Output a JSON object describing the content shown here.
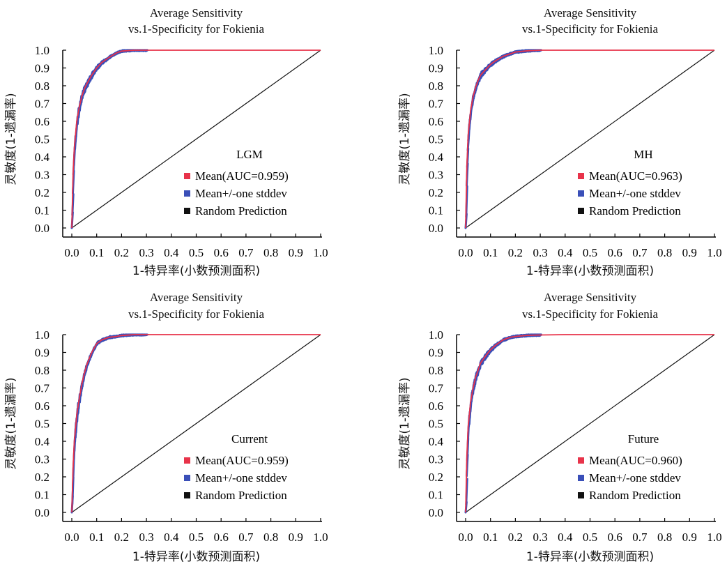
{
  "colors": {
    "mean": "#e8334a",
    "stddev": "#3a4fb8",
    "random": "#111111",
    "axis": "#000000"
  },
  "chart_data": [
    {
      "type": "line",
      "panel_label": "LGM",
      "title_line1": "Average Sensitivity",
      "title_line2": "vs.1-Specificity for Fokienia",
      "xlabel": "1-特异率(小数预测面积)",
      "ylabel": "灵敏度(1-遗漏率)",
      "xlim": [
        0,
        1
      ],
      "ylim": [
        0,
        1
      ],
      "x_ticks": [
        "0.0",
        "0.1",
        "0.2",
        "0.3",
        "0.4",
        "0.5",
        "0.6",
        "0.7",
        "0.8",
        "0.9",
        "1.0"
      ],
      "y_ticks": [
        "0.0",
        "0.1",
        "0.2",
        "0.3",
        "0.4",
        "0.5",
        "0.6",
        "0.7",
        "0.8",
        "0.9",
        "1.0"
      ],
      "legend": [
        "Mean(AUC=0.959)",
        "Mean+/-one stddev",
        "Random Prediction"
      ],
      "series": [
        {
          "name": "Mean(AUC=0.959)",
          "x": [
            0,
            0.005,
            0.01,
            0.02,
            0.03,
            0.04,
            0.05,
            0.06,
            0.08,
            0.1,
            0.12,
            0.15,
            0.18,
            0.2,
            0.25,
            0.3,
            0.4,
            0.6,
            0.8,
            1.0
          ],
          "y": [
            0,
            0.3,
            0.45,
            0.6,
            0.68,
            0.74,
            0.78,
            0.81,
            0.86,
            0.9,
            0.93,
            0.96,
            0.985,
            0.995,
            1.0,
            1.0,
            1.0,
            1.0,
            1.0,
            1.0
          ]
        },
        {
          "name": "Random Prediction",
          "x": [
            0,
            1
          ],
          "y": [
            0,
            1
          ]
        }
      ]
    },
    {
      "type": "line",
      "panel_label": "MH",
      "title_line1": "Average Sensitivity",
      "title_line2": "vs.1-Specificity for Fokienia",
      "xlabel": "1-特异率(小数预测面积)",
      "ylabel": "灵敏度(1-遗漏率)",
      "xlim": [
        0,
        1
      ],
      "ylim": [
        0,
        1
      ],
      "x_ticks": [
        "0.0",
        "0.1",
        "0.2",
        "0.3",
        "0.4",
        "0.5",
        "0.6",
        "0.7",
        "0.8",
        "0.9",
        "1.0"
      ],
      "y_ticks": [
        "0.0",
        "0.1",
        "0.2",
        "0.3",
        "0.4",
        "0.5",
        "0.6",
        "0.7",
        "0.8",
        "0.9",
        "1.0"
      ],
      "legend": [
        "Mean(AUC=0.963)",
        "Mean+/-one stddev",
        "Random Prediction"
      ],
      "series": [
        {
          "name": "Mean(AUC=0.963)",
          "x": [
            0,
            0.005,
            0.01,
            0.02,
            0.03,
            0.04,
            0.05,
            0.06,
            0.08,
            0.1,
            0.12,
            0.15,
            0.18,
            0.2,
            0.25,
            0.3,
            0.4,
            0.6,
            0.8,
            1.0
          ],
          "y": [
            0,
            0.35,
            0.52,
            0.66,
            0.74,
            0.79,
            0.83,
            0.86,
            0.89,
            0.92,
            0.94,
            0.965,
            0.98,
            0.99,
            0.997,
            1.0,
            1.0,
            1.0,
            1.0,
            1.0
          ]
        },
        {
          "name": "Random Prediction",
          "x": [
            0,
            1
          ],
          "y": [
            0,
            1
          ]
        }
      ]
    },
    {
      "type": "line",
      "panel_label": "Current",
      "title_line1": "Average Sensitivity",
      "title_line2": "vs.1-Specificity for Fokienia",
      "xlabel": "1-特异率(小数预测面积)",
      "ylabel": "灵敏度(1-遗漏率)",
      "xlim": [
        0,
        1
      ],
      "ylim": [
        0,
        1
      ],
      "x_ticks": [
        "0.0",
        "0.1",
        "0.2",
        "0.3",
        "0.4",
        "0.5",
        "0.6",
        "0.7",
        "0.8",
        "0.9",
        "1.0"
      ],
      "y_ticks": [
        "0.0",
        "0.1",
        "0.2",
        "0.3",
        "0.4",
        "0.5",
        "0.6",
        "0.7",
        "0.8",
        "0.9",
        "1.0"
      ],
      "legend": [
        "Mean(AUC=0.959)",
        "Mean+/-one stddev",
        "Random Prediction"
      ],
      "series": [
        {
          "name": "Mean(AUC=0.959)",
          "x": [
            0,
            0.005,
            0.01,
            0.02,
            0.03,
            0.04,
            0.05,
            0.06,
            0.08,
            0.1,
            0.12,
            0.15,
            0.18,
            0.2,
            0.25,
            0.3,
            0.4,
            0.6,
            0.8,
            1.0
          ],
          "y": [
            0,
            0.25,
            0.4,
            0.55,
            0.64,
            0.72,
            0.78,
            0.83,
            0.9,
            0.95,
            0.97,
            0.985,
            0.99,
            0.995,
            1.0,
            1.0,
            1.0,
            1.0,
            1.0,
            1.0
          ]
        },
        {
          "name": "Random Prediction",
          "x": [
            0,
            1
          ],
          "y": [
            0,
            1
          ]
        }
      ]
    },
    {
      "type": "line",
      "panel_label": "Future",
      "title_line1": "Average Sensitivity",
      "title_line2": "vs.1-Specificity for Fokienia",
      "xlabel": "1-特异率(小数预测面积)",
      "ylabel": "灵敏度(1-遗漏率)",
      "xlim": [
        0,
        1
      ],
      "ylim": [
        0,
        1
      ],
      "x_ticks": [
        "0.0",
        "0.1",
        "0.2",
        "0.3",
        "0.4",
        "0.5",
        "0.6",
        "0.7",
        "0.8",
        "0.9",
        "1.0"
      ],
      "y_ticks": [
        "0.0",
        "0.1",
        "0.2",
        "0.3",
        "0.4",
        "0.5",
        "0.6",
        "0.7",
        "0.8",
        "0.9",
        "1.0"
      ],
      "legend": [
        "Mean(AUC=0.960)",
        "Mean+/-one stddev",
        "Random Prediction"
      ],
      "series": [
        {
          "name": "Mean(AUC=0.960)",
          "x": [
            0,
            0.005,
            0.01,
            0.02,
            0.03,
            0.04,
            0.05,
            0.06,
            0.08,
            0.1,
            0.12,
            0.15,
            0.18,
            0.2,
            0.25,
            0.3,
            0.4,
            0.6,
            0.8,
            1.0
          ],
          "y": [
            0,
            0.32,
            0.48,
            0.62,
            0.7,
            0.76,
            0.8,
            0.84,
            0.88,
            0.915,
            0.94,
            0.97,
            0.985,
            0.99,
            0.996,
            0.998,
            1.0,
            1.0,
            1.0,
            1.0
          ]
        },
        {
          "name": "Random Prediction",
          "x": [
            0,
            1
          ],
          "y": [
            0,
            1
          ]
        }
      ]
    }
  ]
}
